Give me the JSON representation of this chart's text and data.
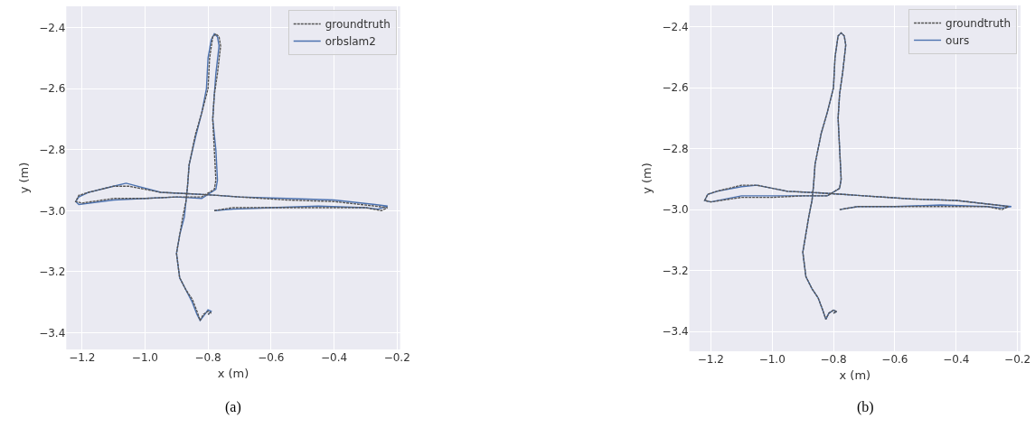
{
  "chart_data": [
    {
      "type": "line",
      "xlabel": "x (m)",
      "ylabel": "y (m)",
      "annotations": [
        "(a)"
      ],
      "xlim": [
        -1.25,
        -0.19
      ],
      "ylim": [
        -3.455,
        -2.33
      ],
      "xticks": [
        -1.2,
        {
          "value": -1.0,
          "label": "−1.0"
        },
        -0.8,
        -0.6,
        -0.4,
        -0.2
      ],
      "yticks": [
        -3.4,
        -3.2,
        {
          "value": -3.0,
          "label": "−3.0"
        },
        -2.8,
        -2.6,
        -2.4
      ],
      "grid": true,
      "legend": "top right",
      "marker": "none",
      "series": [
        {
          "name": "groundtruth",
          "color": "#555555",
          "line_style": "dashed",
          "x": [
            -0.78,
            -0.72,
            -0.6,
            -0.45,
            -0.3,
            -0.25,
            -0.23,
            -0.27,
            -0.4,
            -0.55,
            -0.7,
            -0.77,
            -0.85,
            -0.95,
            -1.05,
            -1.1,
            -1.18,
            -1.21,
            -1.22,
            -1.2,
            -1.1,
            -1.0,
            -0.9,
            -0.82,
            -0.78,
            -0.775,
            -0.78,
            -0.785,
            -0.78,
            -0.77,
            -0.76,
            -0.765,
            -0.775,
            -0.785,
            -0.795,
            -0.8,
            -0.82,
            -0.84,
            -0.86,
            -0.865,
            -0.87,
            -0.88,
            -0.89,
            -0.9,
            -0.895,
            -0.89,
            -0.87,
            -0.85,
            -0.835,
            -0.825,
            -0.815,
            -0.8,
            -0.79,
            -0.8
          ],
          "values": [
            -3.0,
            -2.99,
            -2.99,
            -2.99,
            -2.99,
            -3.0,
            -2.99,
            -2.985,
            -2.97,
            -2.965,
            -2.955,
            -2.95,
            -2.945,
            -2.94,
            -2.92,
            -2.92,
            -2.94,
            -2.95,
            -2.97,
            -2.975,
            -2.96,
            -2.96,
            -2.955,
            -2.955,
            -2.93,
            -2.9,
            -2.8,
            -2.7,
            -2.62,
            -2.55,
            -2.46,
            -2.43,
            -2.42,
            -2.43,
            -2.5,
            -2.6,
            -2.68,
            -2.75,
            -2.85,
            -2.92,
            -2.97,
            -3.02,
            -3.08,
            -3.14,
            -3.18,
            -3.22,
            -3.26,
            -3.29,
            -3.33,
            -3.36,
            -3.34,
            -3.33,
            -3.335,
            -3.34
          ]
        },
        {
          "name": "orbslam2",
          "color": "#4c72b0",
          "line_style": "solid",
          "x": [
            -0.78,
            -0.72,
            -0.6,
            -0.45,
            -0.3,
            -0.26,
            -0.23,
            -0.27,
            -0.4,
            -0.55,
            -0.7,
            -0.77,
            -0.85,
            -0.95,
            -1.06,
            -1.1,
            -1.18,
            -1.21,
            -1.22,
            -1.21,
            -1.1,
            -1.0,
            -0.9,
            -0.82,
            -0.775,
            -0.77,
            -0.775,
            -0.785,
            -0.78,
            -0.775,
            -0.765,
            -0.77,
            -0.78,
            -0.79,
            -0.8,
            -0.805,
            -0.82,
            -0.84,
            -0.86,
            -0.865,
            -0.87,
            -0.875,
            -0.89,
            -0.9,
            -0.895,
            -0.89,
            -0.87,
            -0.85,
            -0.835,
            -0.825,
            -0.81,
            -0.8,
            -0.79,
            -0.8
          ],
          "values": [
            -3.0,
            -2.995,
            -2.99,
            -2.985,
            -2.99,
            -2.995,
            -2.985,
            -2.98,
            -2.965,
            -2.96,
            -2.955,
            -2.95,
            -2.945,
            -2.94,
            -2.91,
            -2.92,
            -2.94,
            -2.955,
            -2.97,
            -2.98,
            -2.965,
            -2.96,
            -2.955,
            -2.96,
            -2.93,
            -2.9,
            -2.8,
            -2.7,
            -2.62,
            -2.55,
            -2.46,
            -2.43,
            -2.42,
            -2.44,
            -2.5,
            -2.6,
            -2.68,
            -2.76,
            -2.85,
            -2.92,
            -2.97,
            -3.02,
            -3.08,
            -3.14,
            -3.18,
            -3.22,
            -3.26,
            -3.3,
            -3.34,
            -3.36,
            -3.34,
            -3.325,
            -3.33,
            -3.34
          ]
        }
      ]
    },
    {
      "type": "line",
      "xlabel": "x (m)",
      "ylabel": "y (m)",
      "annotations": [
        "(b)"
      ],
      "xlim": [
        -1.27,
        -0.19
      ],
      "ylim": [
        -3.465,
        -2.33
      ],
      "xticks": [
        -1.2,
        {
          "value": -1.0,
          "label": "−1.0"
        },
        -0.8,
        -0.6,
        -0.4,
        -0.2
      ],
      "yticks": [
        -3.4,
        -3.2,
        {
          "value": -3.0,
          "label": "−3.0"
        },
        -2.8,
        -2.6,
        -2.4
      ],
      "grid": true,
      "legend": "top right",
      "marker": "none",
      "series": [
        {
          "name": "groundtruth",
          "color": "#555555",
          "line_style": "dashed",
          "x": [
            -0.78,
            -0.72,
            -0.6,
            -0.45,
            -0.3,
            -0.25,
            -0.23,
            -0.27,
            -0.4,
            -0.55,
            -0.7,
            -0.77,
            -0.85,
            -0.95,
            -1.05,
            -1.1,
            -1.18,
            -1.21,
            -1.22,
            -1.2,
            -1.1,
            -1.0,
            -0.9,
            -0.82,
            -0.78,
            -0.775,
            -0.78,
            -0.785,
            -0.78,
            -0.77,
            -0.76,
            -0.765,
            -0.775,
            -0.785,
            -0.795,
            -0.8,
            -0.82,
            -0.84,
            -0.86,
            -0.865,
            -0.87,
            -0.88,
            -0.89,
            -0.9,
            -0.895,
            -0.89,
            -0.87,
            -0.85,
            -0.835,
            -0.825,
            -0.815,
            -0.8,
            -0.79,
            -0.8
          ],
          "values": [
            -3.0,
            -2.99,
            -2.99,
            -2.99,
            -2.99,
            -3.0,
            -2.99,
            -2.985,
            -2.97,
            -2.965,
            -2.955,
            -2.95,
            -2.945,
            -2.94,
            -2.92,
            -2.92,
            -2.94,
            -2.95,
            -2.97,
            -2.975,
            -2.96,
            -2.96,
            -2.955,
            -2.955,
            -2.93,
            -2.9,
            -2.8,
            -2.7,
            -2.62,
            -2.55,
            -2.46,
            -2.43,
            -2.42,
            -2.43,
            -2.5,
            -2.6,
            -2.68,
            -2.75,
            -2.85,
            -2.92,
            -2.97,
            -3.02,
            -3.08,
            -3.14,
            -3.18,
            -3.22,
            -3.26,
            -3.29,
            -3.33,
            -3.36,
            -3.34,
            -3.33,
            -3.335,
            -3.34
          ]
        },
        {
          "name": "ours",
          "color": "#4c72b0",
          "line_style": "solid",
          "x": [
            -0.78,
            -0.72,
            -0.6,
            -0.45,
            -0.3,
            -0.25,
            -0.22,
            -0.27,
            -0.4,
            -0.55,
            -0.7,
            -0.77,
            -0.85,
            -0.95,
            -1.05,
            -1.1,
            -1.18,
            -1.21,
            -1.22,
            -1.2,
            -1.1,
            -1.0,
            -0.9,
            -0.82,
            -0.78,
            -0.775,
            -0.78,
            -0.785,
            -0.78,
            -0.77,
            -0.76,
            -0.765,
            -0.775,
            -0.785,
            -0.795,
            -0.8,
            -0.82,
            -0.84,
            -0.86,
            -0.865,
            -0.87,
            -0.88,
            -0.89,
            -0.9,
            -0.895,
            -0.89,
            -0.87,
            -0.85,
            -0.835,
            -0.825,
            -0.815,
            -0.8,
            -0.79,
            -0.8
          ],
          "values": [
            -3.0,
            -2.99,
            -2.99,
            -2.985,
            -2.99,
            -2.995,
            -2.99,
            -2.985,
            -2.97,
            -2.965,
            -2.955,
            -2.95,
            -2.945,
            -2.94,
            -2.92,
            -2.925,
            -2.94,
            -2.95,
            -2.97,
            -2.975,
            -2.955,
            -2.955,
            -2.955,
            -2.955,
            -2.93,
            -2.9,
            -2.8,
            -2.7,
            -2.62,
            -2.55,
            -2.46,
            -2.43,
            -2.42,
            -2.43,
            -2.5,
            -2.6,
            -2.68,
            -2.75,
            -2.85,
            -2.92,
            -2.97,
            -3.02,
            -3.08,
            -3.14,
            -3.18,
            -3.22,
            -3.26,
            -3.29,
            -3.33,
            -3.36,
            -3.34,
            -3.33,
            -3.335,
            -3.34
          ]
        }
      ]
    }
  ]
}
